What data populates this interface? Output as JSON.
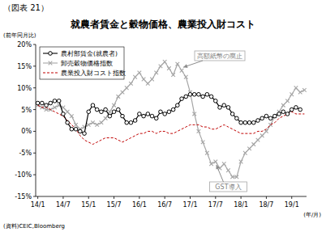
{
  "chart_data": {
    "type": "line",
    "figure_number": "（図表 21）",
    "title": "就農者賃金と穀物価格、農業投入財コスト",
    "y_label": "(前年同月比)",
    "x_label": "(年/月)",
    "source": "(資料)CEIC,Bloomberg",
    "categories": [
      "14/1",
      null,
      null,
      null,
      null,
      null,
      "14/7",
      null,
      null,
      null,
      null,
      null,
      "15/1",
      null,
      null,
      null,
      null,
      null,
      "15/7",
      null,
      null,
      null,
      null,
      null,
      "16/1",
      null,
      null,
      null,
      null,
      null,
      "16/7",
      null,
      null,
      null,
      null,
      null,
      "17/1",
      null,
      null,
      null,
      null,
      null,
      "17/7",
      null,
      null,
      null,
      null,
      null,
      "18/1",
      null,
      null,
      null,
      null,
      null,
      "18/7",
      null,
      null,
      null,
      null,
      null,
      "19/1",
      null,
      null,
      null
    ],
    "series": [
      {
        "name": "農村部賃金(就農者)",
        "color": "#000000",
        "marker": "circle",
        "line_style": "solid",
        "values": [
          6.5,
          6.5,
          6,
          6.5,
          7,
          7,
          4,
          2,
          0.5,
          0.5,
          0,
          -0.5,
          4.5,
          6,
          5,
          4.5,
          5,
          3.5,
          4.5,
          5,
          3.5,
          2,
          2,
          2.5,
          4,
          3.5,
          4,
          3.5,
          3,
          4.5,
          4,
          4.5,
          5,
          6,
          7.5,
          8,
          8.5,
          8.5,
          8.5,
          8,
          8.5,
          8,
          7,
          5.5,
          6,
          5.5,
          4,
          3,
          2,
          2,
          2,
          2,
          2.5,
          3,
          3.5,
          3,
          3.5,
          4,
          4.5,
          4,
          5,
          5.5,
          5,
          null
        ]
      },
      {
        "name": "卸売穀物価格指数",
        "color": "#a6a6a6",
        "marker": "x",
        "line_style": "solid",
        "values": [
          6,
          5.5,
          5,
          5,
          5.5,
          6,
          5.5,
          4.5,
          3.5,
          1.5,
          0.5,
          1,
          1.5,
          2,
          1.5,
          2,
          3,
          4.5,
          6,
          8,
          9,
          10,
          11,
          12.5,
          13.5,
          12,
          11,
          12,
          13.5,
          15,
          16,
          14.5,
          13,
          15.5,
          14,
          12.5,
          9,
          4,
          0,
          -2.5,
          -5,
          -7.5,
          -7,
          -8.5,
          -7.5,
          -9,
          -10.5,
          -10.5,
          -7,
          -5,
          -4,
          -3,
          -2,
          -1,
          0,
          1.5,
          3.5,
          4.5,
          6,
          7,
          8.5,
          10,
          9,
          9.5
        ]
      },
      {
        "name": "農業投入財コスト指数",
        "color": "#c00000",
        "marker": "none",
        "line_style": "dashed",
        "values": [
          6,
          5.5,
          5.5,
          5,
          4.5,
          4,
          3.5,
          2.5,
          1.5,
          0.5,
          -1,
          -2,
          -2.5,
          -3,
          -2.5,
          -2,
          -1.5,
          -1.5,
          -1.5,
          -2,
          -2.5,
          -2,
          -1.5,
          -1,
          -0.5,
          -0.5,
          0,
          0,
          -0.5,
          0,
          0,
          -0.5,
          -0.5,
          0,
          0.5,
          1,
          1.5,
          1.5,
          1.5,
          1,
          1,
          0.5,
          0.5,
          1,
          1.5,
          1,
          0.5,
          0,
          -0.5,
          -0.5,
          -0.5,
          -0.5,
          0,
          0,
          0.5,
          1.5,
          2,
          3,
          3.5,
          4,
          4.5,
          4,
          4,
          4
        ]
      }
    ],
    "ylim": [
      -15,
      20
    ],
    "yticks": [
      {
        "value": -15,
        "label": "-15%"
      },
      {
        "value": -10,
        "label": "-10%"
      },
      {
        "value": -5,
        "label": "-5%"
      },
      {
        "value": 0,
        "label": "0%"
      },
      {
        "value": 5,
        "label": "5%"
      },
      {
        "value": 10,
        "label": "10%"
      },
      {
        "value": 15,
        "label": "15%"
      },
      {
        "value": 20,
        "label": "20%"
      }
    ],
    "grid": false,
    "legend": "upper left",
    "annotations": [
      "高額紙幣の廃止",
      "GST導入"
    ]
  }
}
